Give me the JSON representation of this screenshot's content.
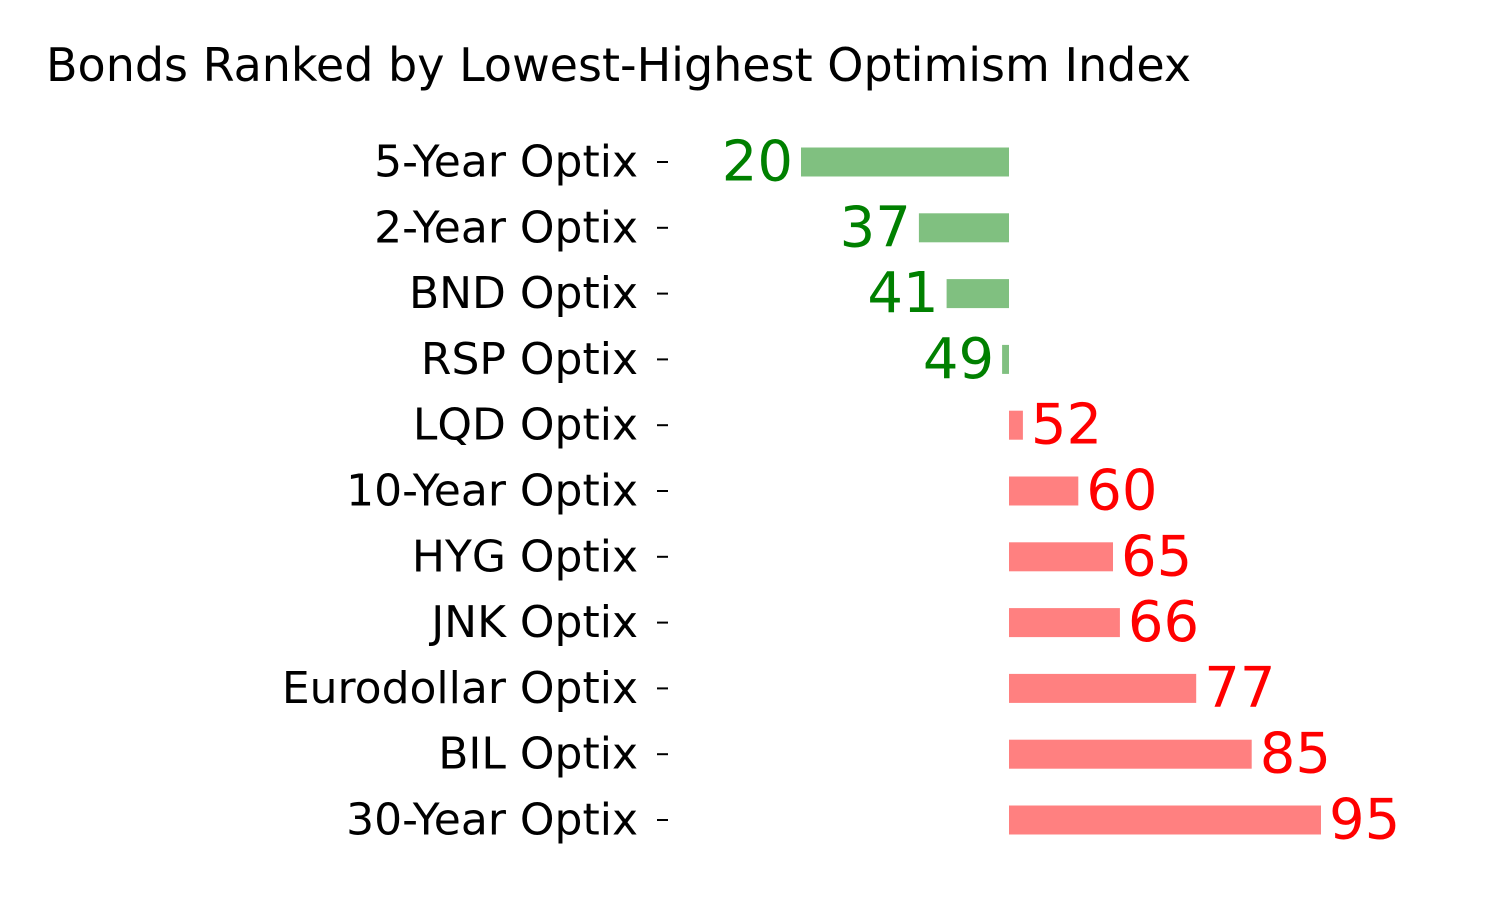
{
  "chart_data": {
    "type": "bar",
    "orientation": "horizontal",
    "title": "Bonds Ranked by Lowest-Highest Optimism Index",
    "xlabel": "",
    "ylabel": "",
    "baseline": 50,
    "xlim": [
      20,
      95
    ],
    "grid": false,
    "categories": [
      "5-Year Optix",
      "2-Year Optix",
      "BND Optix",
      "RSP Optix",
      "LQD Optix",
      "10-Year Optix",
      "HYG Optix",
      "JNK Optix",
      "Eurodollar Optix",
      "BIL Optix",
      "30-Year Optix"
    ],
    "values": [
      20,
      37,
      41,
      49,
      52,
      60,
      65,
      66,
      77,
      85,
      95
    ],
    "value_labels": [
      "20",
      "37",
      "41",
      "49",
      "52",
      "60",
      "65",
      "66",
      "77",
      "85",
      "95"
    ],
    "colors": {
      "below_bar": "#80c080",
      "below_text": "#008000",
      "above_bar": "#ff8080",
      "above_text": "#ff0000"
    }
  }
}
